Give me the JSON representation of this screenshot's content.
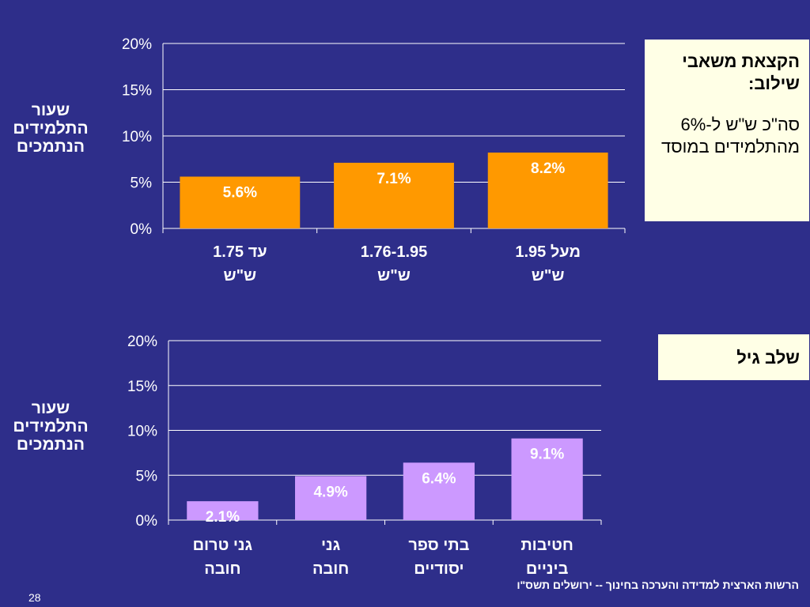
{
  "chart_data": [
    {
      "type": "bar",
      "ylabel": "שעור התלמידים הנתמכים",
      "categories": [
        "עד 1.75 ש\"ש",
        "1.76-1.95 ש\"ש",
        "מעל 1.95 ש\"ש"
      ],
      "values": [
        5.6,
        7.1,
        8.2
      ],
      "data_labels": [
        "5.6%",
        "7.1%",
        "8.2%"
      ],
      "yticks": [
        "0%",
        "5%",
        "10%",
        "15%",
        "20%"
      ],
      "ylim": [
        0,
        20
      ],
      "bar_color": "#ff9900",
      "grid": true
    },
    {
      "type": "bar",
      "ylabel": "שעור התלמידים הנתמכים",
      "categories": [
        "גני טרום חובה",
        "גני חובה",
        "בתי ספר יסודיים",
        "חטיבות ביניים"
      ],
      "values": [
        2.1,
        4.9,
        6.4,
        9.1
      ],
      "data_labels": [
        "2.1%",
        "4.9%",
        "6.4%",
        "9.1%"
      ],
      "yticks": [
        "0%",
        "5%",
        "10%",
        "15%",
        "20%"
      ],
      "ylim": [
        0,
        20
      ],
      "bar_color": "#cc99ff",
      "grid": true
    }
  ],
  "sidebox_top": {
    "heading": "הקצאת משאבי שילוב:",
    "body": "סה\"כ ש\"ש ל-6% מהתלמידים במוסד"
  },
  "sidebox_bottom": {
    "heading": "שלב גיל"
  },
  "footer": "הרשות הארצית למדידה והערכה בחינוך -- ירושלים תשס\"ו",
  "page_number": "28"
}
